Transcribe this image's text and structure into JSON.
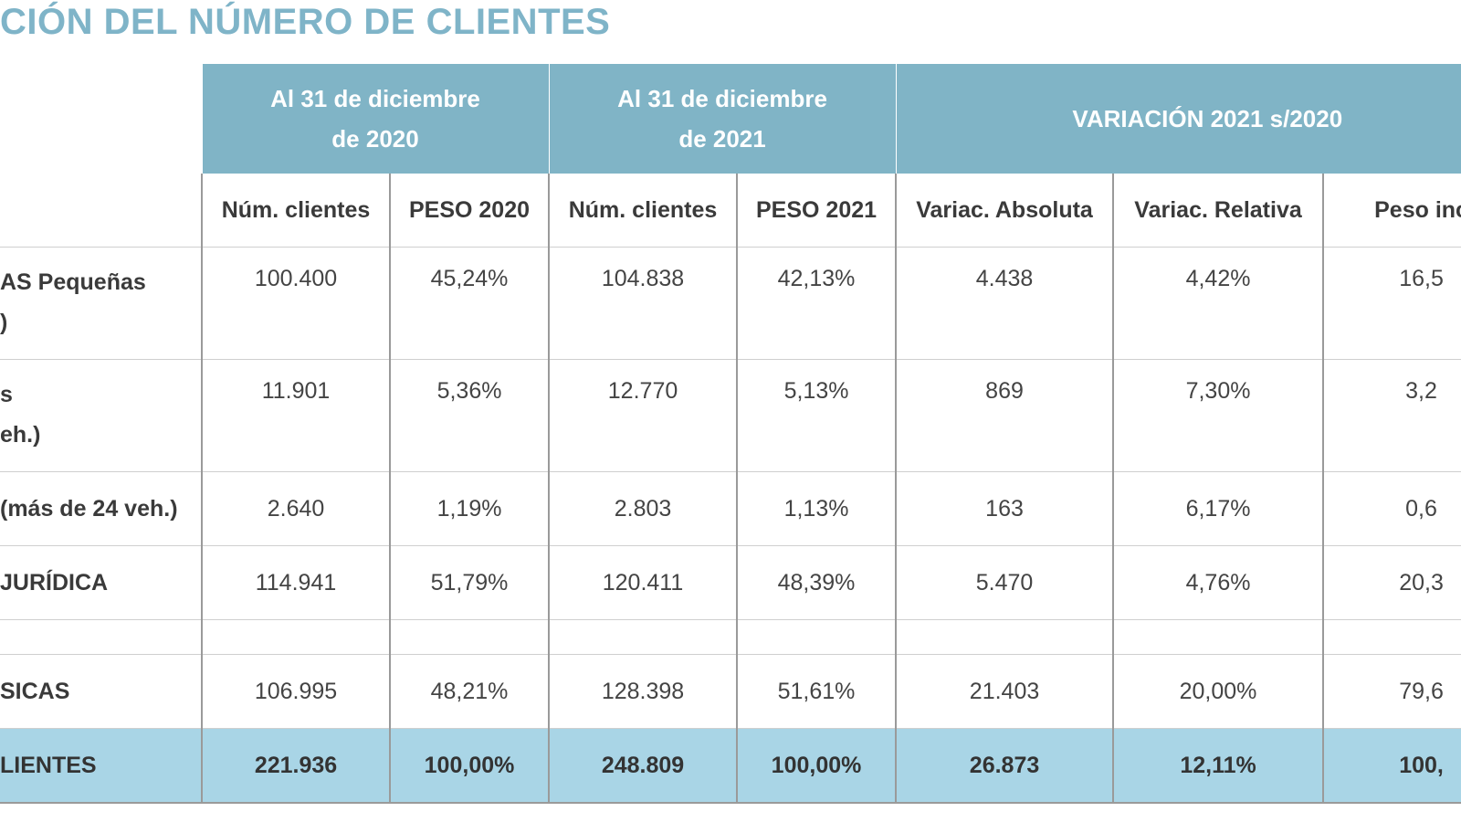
{
  "title": "CIÓN DEL NÚMERO DE CLIENTES",
  "header": {
    "groups": [
      {
        "line1": "Al 31 de diciembre",
        "line2": "de 2020"
      },
      {
        "line1": "Al 31 de diciembre",
        "line2": "de  2021"
      },
      {
        "line1": "VARIACIÓN 2021 s/2020",
        "line2": ""
      }
    ],
    "columns": [
      "Núm. clientes",
      "PESO 2020",
      "Núm. clientes",
      "PESO 2021",
      "Variac. Absoluta",
      "Variac. Relativa",
      "Peso inc"
    ]
  },
  "rows": [
    {
      "label1": "AS Pequeñas",
      "label2": ")",
      "values": [
        "100.400",
        "45,24%",
        "104.838",
        "42,13%",
        "4.438",
        "4,42%",
        "16,5"
      ]
    },
    {
      "label1": "s",
      "label2": "eh.)",
      "values": [
        "11.901",
        "5,36%",
        "12.770",
        "5,13%",
        "869",
        "7,30%",
        "3,2"
      ]
    },
    {
      "label1": "(más de 24 veh.)",
      "label2": "",
      "values": [
        "2.640",
        "1,19%",
        "2.803",
        "1,13%",
        "163",
        "6,17%",
        "0,6"
      ]
    },
    {
      "label1": " JURÍDICA",
      "label2": "",
      "values": [
        "114.941",
        "51,79%",
        "120.411",
        "48,39%",
        "5.470",
        "4,76%",
        "20,3"
      ]
    },
    {
      "label1": "SICAS",
      "label2": "",
      "values": [
        "106.995",
        "48,21%",
        "128.398",
        "51,61%",
        "21.403",
        "20,00%",
        "79,6"
      ]
    }
  ],
  "total": {
    "label": "LIENTES",
    "values": [
      "221.936",
      "100,00%",
      "248.809",
      "100,00%",
      "26.873",
      "12,11%",
      "100,"
    ]
  },
  "colors": {
    "title": "#7fb4c8",
    "header_bg": "#80b4c6",
    "total_bg": "#a9d5e6"
  }
}
